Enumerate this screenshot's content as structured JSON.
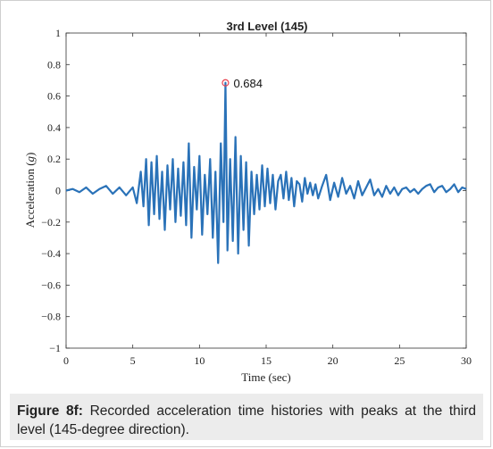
{
  "chart_data": {
    "type": "line",
    "title": "3rd Level (145)",
    "xlabel": "Time (sec)",
    "ylabel_text": "Acceleration (",
    "ylabel_unit": "g",
    "ylabel_close": ")",
    "xlim": [
      0,
      30
    ],
    "ylim": [
      -1,
      1
    ],
    "xticks": [
      "0",
      "5",
      "10",
      "15",
      "20",
      "25",
      "30"
    ],
    "yticks": [
      "-1",
      "-0.8",
      "-0.6",
      "-0.4",
      "-0.2",
      "0",
      "0.2",
      "0.4",
      "0.6",
      "0.8",
      "1"
    ],
    "grid": false,
    "series": [
      {
        "color": "#2a72b8",
        "x": [
          0,
          0.5,
          1,
          1.5,
          2,
          2.5,
          3,
          3.5,
          4,
          4.5,
          5,
          5.3,
          5.6,
          5.8,
          6,
          6.2,
          6.4,
          6.6,
          6.8,
          7,
          7.2,
          7.4,
          7.6,
          7.8,
          8,
          8.2,
          8.4,
          8.6,
          8.8,
          9,
          9.2,
          9.4,
          9.6,
          9.8,
          10,
          10.2,
          10.4,
          10.6,
          10.8,
          11,
          11.2,
          11.4,
          11.6,
          11.8,
          11.95,
          12.1,
          12.3,
          12.5,
          12.7,
          12.9,
          13.1,
          13.3,
          13.5,
          13.7,
          13.9,
          14.1,
          14.3,
          14.5,
          14.7,
          14.9,
          15.1,
          15.3,
          15.5,
          15.7,
          15.9,
          16.1,
          16.3,
          16.5,
          16.7,
          16.9,
          17.1,
          17.3,
          17.5,
          17.7,
          17.9,
          18.1,
          18.3,
          18.5,
          18.7,
          18.9,
          19.2,
          19.5,
          19.8,
          20.1,
          20.4,
          20.7,
          21,
          21.3,
          21.6,
          21.9,
          22.2,
          22.5,
          22.8,
          23.1,
          23.4,
          23.7,
          24,
          24.3,
          24.6,
          24.9,
          25.2,
          25.5,
          25.8,
          26.1,
          26.4,
          26.7,
          27,
          27.3,
          27.6,
          27.9,
          28.2,
          28.5,
          28.8,
          29.1,
          29.4,
          29.7,
          30
        ],
        "y": [
          0,
          0.01,
          -0.01,
          0.02,
          -0.02,
          0.01,
          0.03,
          -0.02,
          0.02,
          -0.03,
          0.02,
          -0.08,
          0.12,
          -0.1,
          0.2,
          -0.22,
          0.18,
          -0.15,
          0.22,
          -0.18,
          0.12,
          -0.25,
          0.16,
          -0.12,
          0.2,
          -0.2,
          0.14,
          -0.16,
          0.18,
          -0.22,
          0.3,
          -0.3,
          0.15,
          -0.12,
          0.22,
          -0.28,
          0.1,
          -0.15,
          0.2,
          -0.3,
          0.12,
          -0.46,
          0.3,
          -0.2,
          0.684,
          -0.38,
          0.2,
          -0.32,
          0.34,
          -0.4,
          0.22,
          -0.25,
          0.18,
          -0.35,
          0.12,
          -0.15,
          0.1,
          -0.12,
          0.16,
          -0.1,
          0.14,
          -0.08,
          0.1,
          -0.12,
          0.06,
          0.1,
          -0.05,
          0.12,
          -0.06,
          0.08,
          -0.1,
          0.06,
          0.04,
          -0.07,
          0.08,
          -0.02,
          0.05,
          -0.03,
          0.04,
          -0.05,
          0.03,
          0.1,
          -0.06,
          0.05,
          -0.04,
          0.08,
          -0.02,
          0.03,
          -0.05,
          0.06,
          -0.03,
          0.02,
          0.07,
          -0.03,
          0.01,
          -0.04,
          0.03,
          -0.02,
          0.02,
          -0.03,
          0.01,
          0.02,
          -0.01,
          0.01,
          -0.02,
          0.01,
          0.03,
          0.04,
          -0.01,
          0.02,
          0.03,
          -0.01,
          0.01,
          0.04,
          -0.01,
          0.02,
          0.01
        ]
      }
    ],
    "annotations": [
      {
        "x": 11.95,
        "y": 0.684,
        "label": "0.684",
        "marker": "circle",
        "marker_color": "#e8424f"
      }
    ]
  },
  "caption": {
    "label": "Figure 8f:",
    "text": " Recorded acceleration time histories with peaks at the third level (145-degree direction)."
  }
}
